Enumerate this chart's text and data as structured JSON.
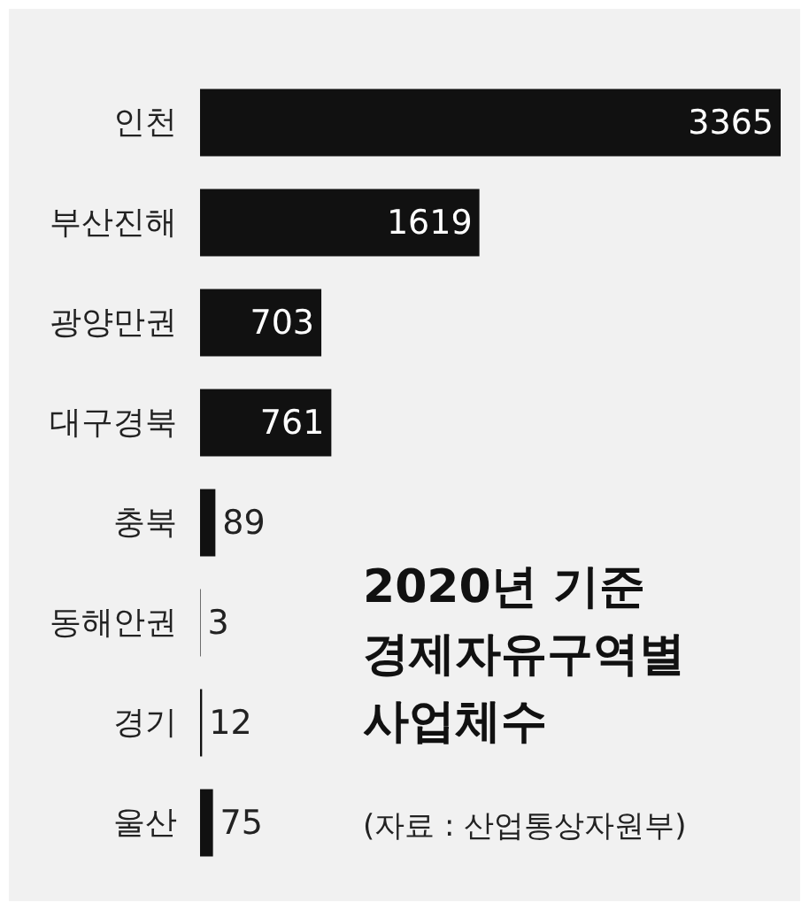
{
  "chart_data": {
    "type": "bar",
    "orientation": "horizontal",
    "title": "2020년 기준 경제자유구역별 사업체수",
    "annotations": [
      "(자료 : 산업통상자원부)"
    ],
    "categories": [
      "인천",
      "부산진해",
      "광양만권",
      "대구경북",
      "충북",
      "동해안권",
      "경기",
      "울산"
    ],
    "values": [
      3365,
      1619,
      703,
      761,
      89,
      3,
      12,
      75
    ],
    "color": "#111111",
    "data_labels": true
  }
}
